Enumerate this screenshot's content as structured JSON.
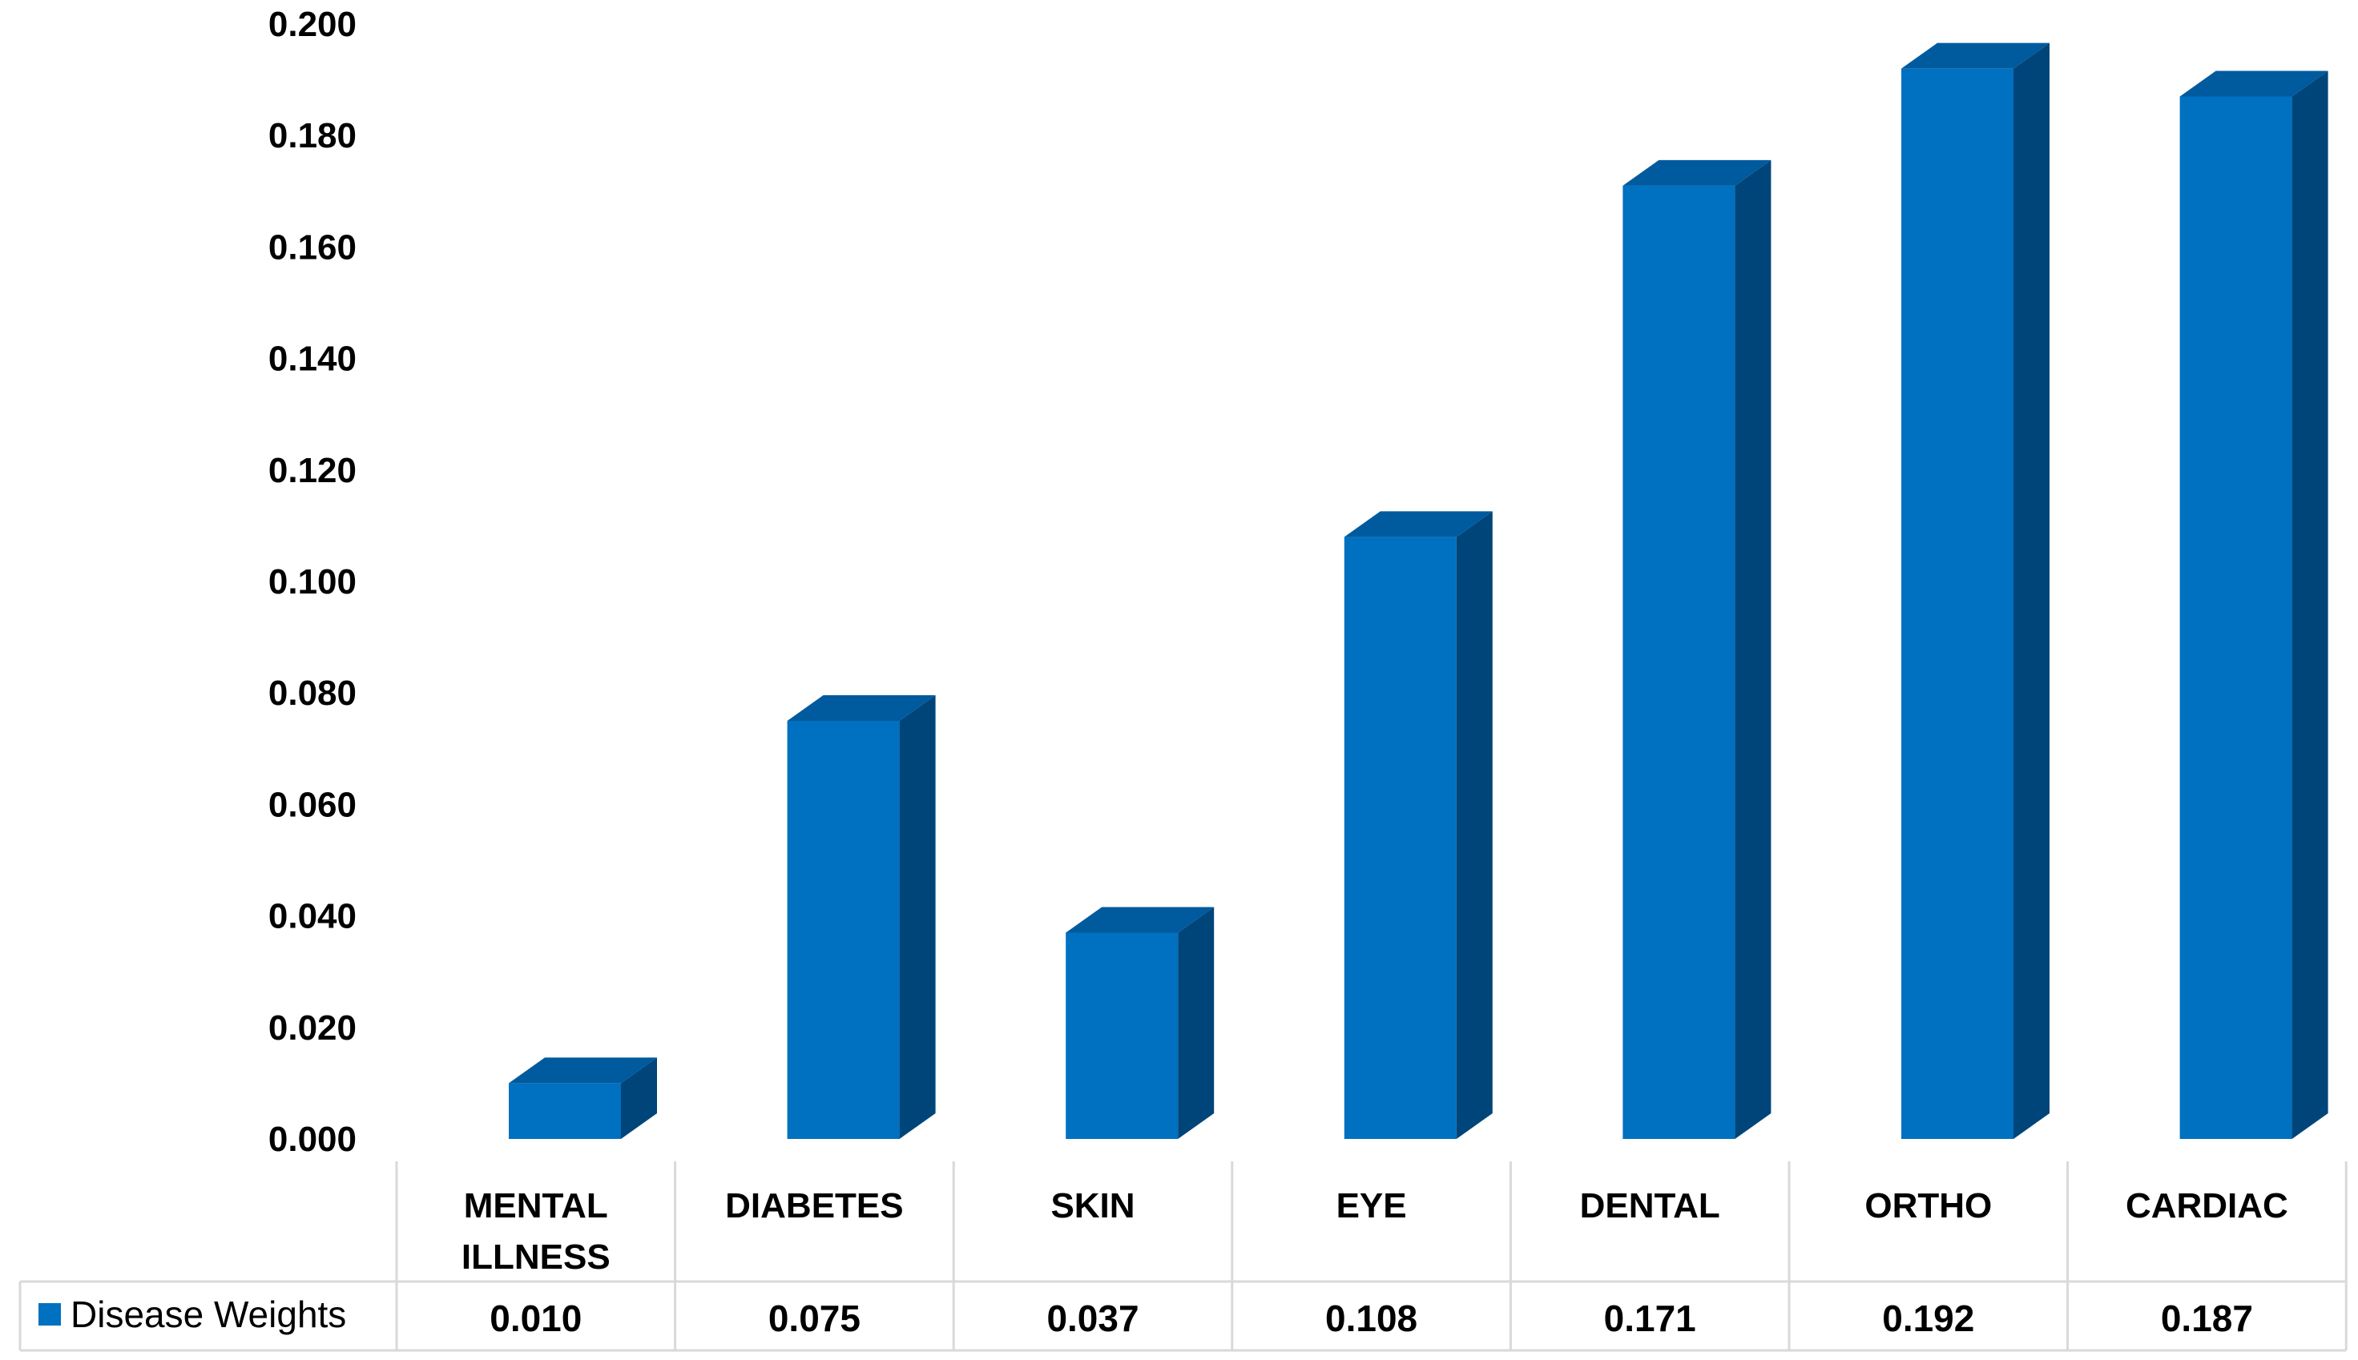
{
  "chart_data": {
    "type": "bar",
    "style": "3d-column-with-data-table",
    "categories": [
      [
        "MENTAL",
        "ILLNESS"
      ],
      [
        "DIABETES"
      ],
      [
        "SKIN"
      ],
      [
        "EYE"
      ],
      [
        "DENTAL"
      ],
      [
        "ORTHO"
      ],
      [
        "CARDIAC"
      ]
    ],
    "series": [
      {
        "name": "Disease Weights",
        "values": [
          0.01,
          0.075,
          0.037,
          0.108,
          0.171,
          0.192,
          0.187
        ],
        "value_labels": [
          "0.010",
          "0.075",
          "0.037",
          "0.108",
          "0.171",
          "0.192",
          "0.187"
        ],
        "color": "#0070c0",
        "side_color": "#00457a",
        "top_color": "#005a9e"
      }
    ],
    "y_ticks": [
      "0.000",
      "0.020",
      "0.040",
      "0.060",
      "0.080",
      "0.100",
      "0.120",
      "0.140",
      "0.160",
      "0.180",
      "0.200"
    ],
    "ylim": [
      0,
      0.2
    ],
    "title": "",
    "xlabel": "",
    "ylabel": "",
    "grid": false,
    "legend": "data-table-left",
    "table_border_color": "#d9d9d9"
  }
}
